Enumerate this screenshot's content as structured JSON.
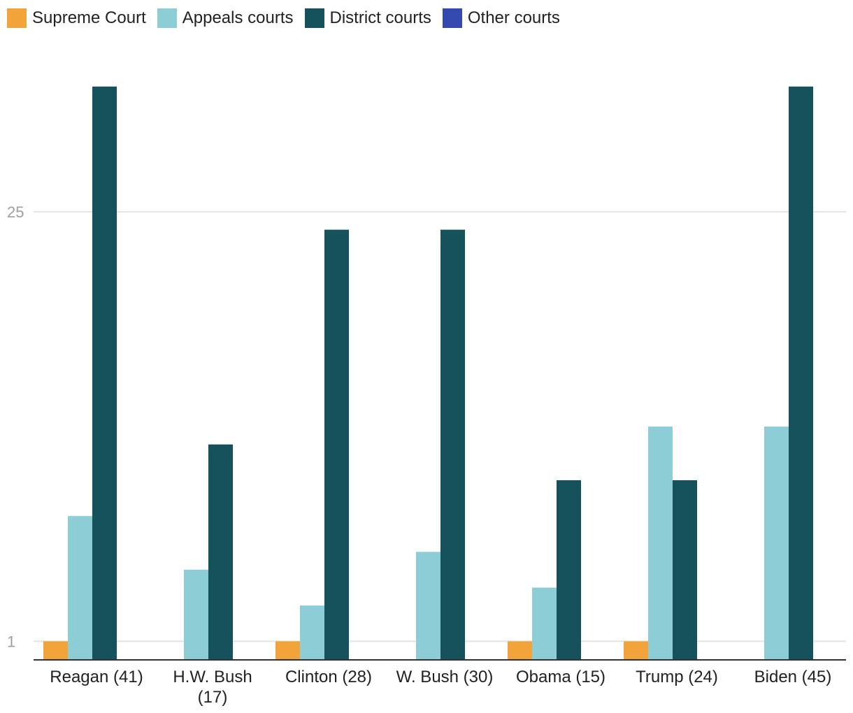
{
  "chart_data": {
    "type": "bar",
    "categories": [
      [
        "Reagan (41)"
      ],
      [
        "H.W. Bush",
        "(17)"
      ],
      [
        "Clinton (28)"
      ],
      [
        "W. Bush (30)"
      ],
      [
        "Obama (15)"
      ],
      [
        "Trump (24)"
      ],
      [
        "Biden (45)"
      ]
    ],
    "series": [
      {
        "name": "Supreme Court",
        "color": "#f2a33a",
        "values": [
          1,
          0,
          1,
          0,
          1,
          1,
          0
        ]
      },
      {
        "name": "Appeals courts",
        "color": "#8dced6",
        "values": [
          8,
          5,
          3,
          6,
          4,
          13,
          13
        ]
      },
      {
        "name": "District courts",
        "color": "#16525b",
        "values": [
          32,
          12,
          24,
          24,
          10,
          10,
          32
        ]
      },
      {
        "name": "Other courts",
        "color": "#3349b0",
        "values": [
          0,
          0,
          0,
          0,
          0,
          0,
          0
        ]
      }
    ],
    "y_ticks": [
      1,
      25
    ],
    "ylim": [
      0,
      32
    ],
    "grid": true,
    "legend_position": "top-left"
  }
}
